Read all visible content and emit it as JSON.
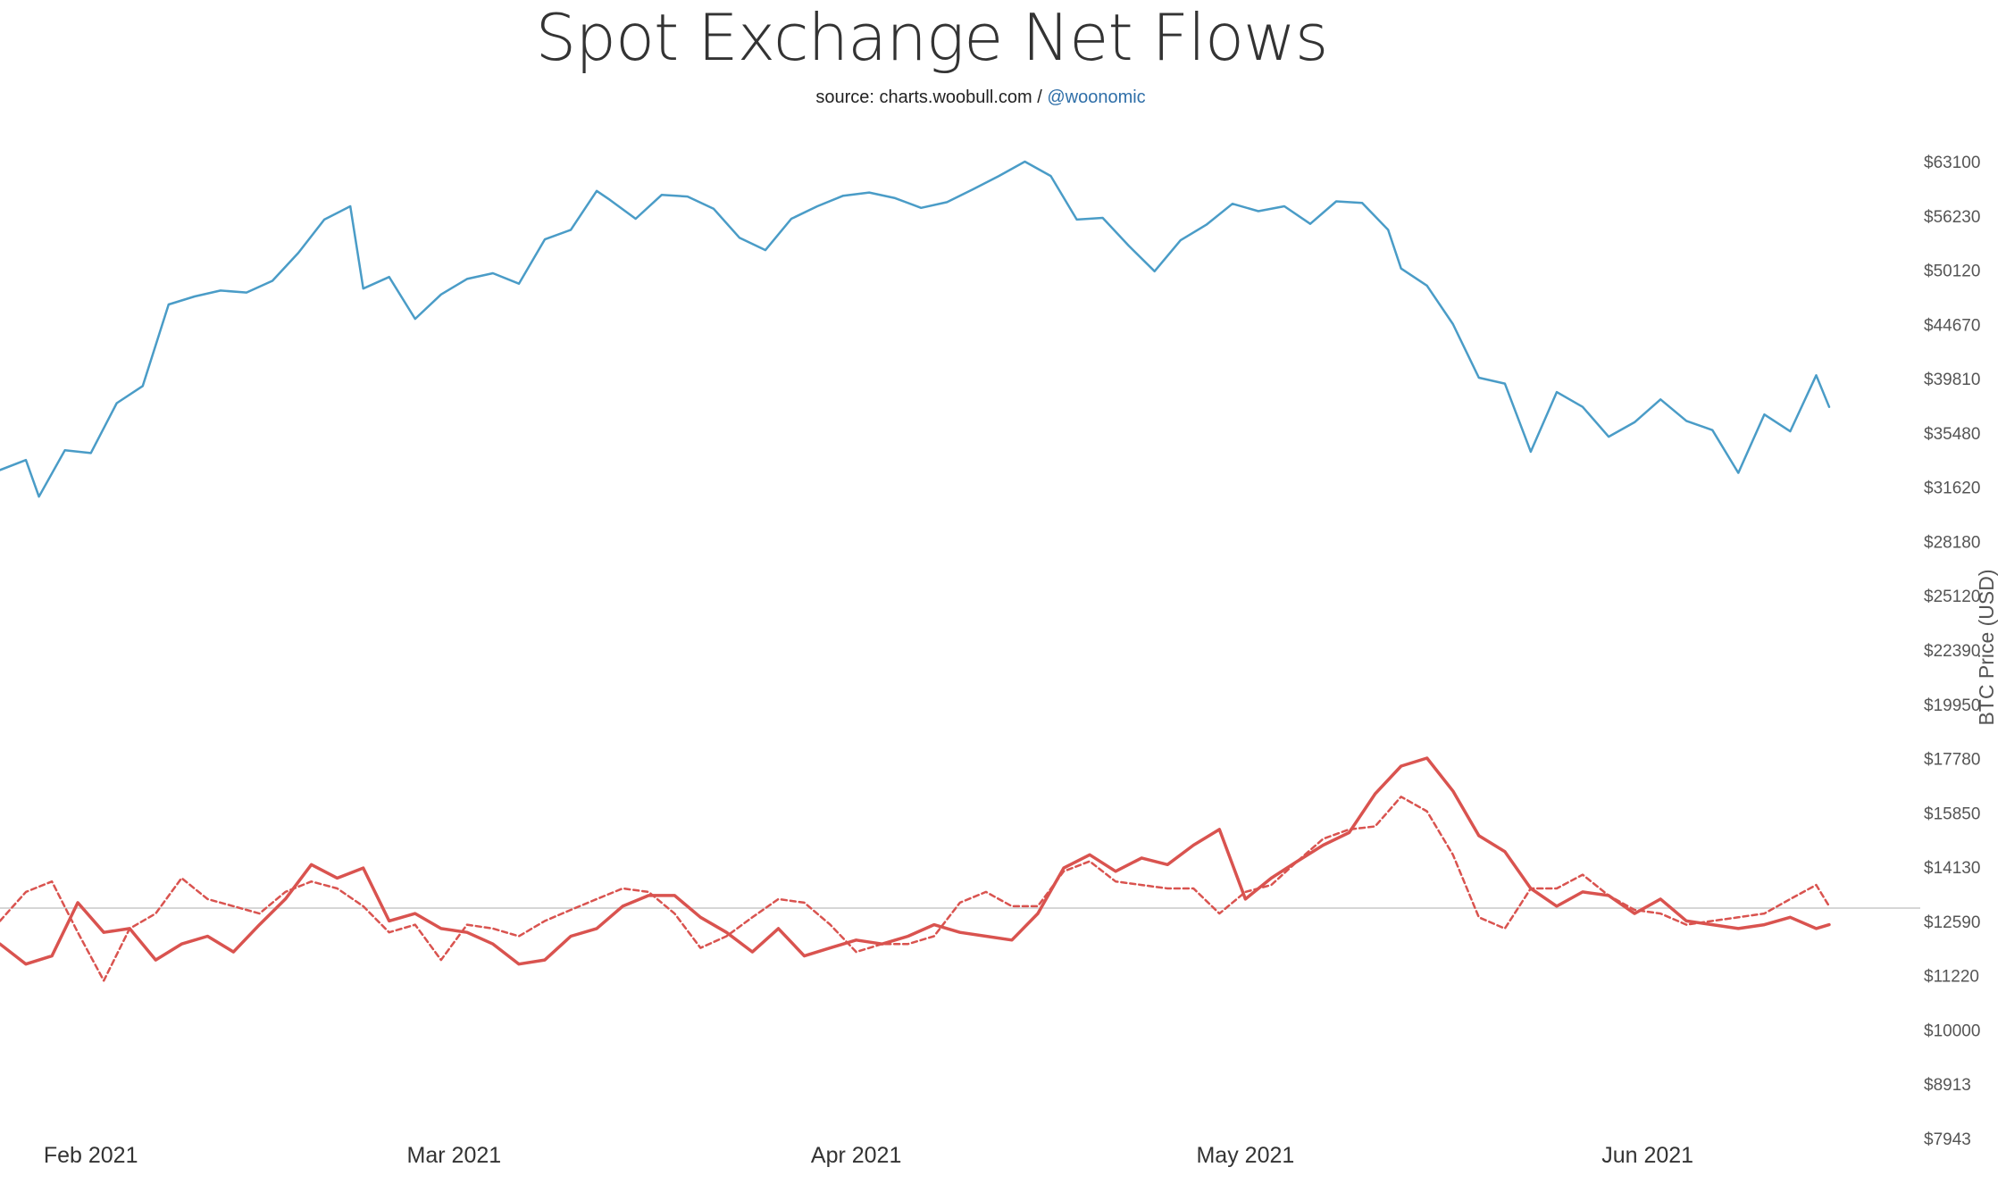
{
  "chart_data": {
    "type": "line",
    "title": "Spot Exchange Net Flows",
    "subtitle": {
      "source": "source: charts.woobull.com",
      "separator": " / ",
      "handle": "@woonomic"
    },
    "ylabel_right": "BTC Price (USD)",
    "y_scale": "log",
    "ylim": [
      7943,
      63100
    ],
    "y_ticks": [
      "$63100",
      "$56230",
      "$50120",
      "$44670",
      "$39810",
      "$35480",
      "$31620",
      "$28180",
      "$25120",
      "$22390",
      "$19950",
      "$17780",
      "$15850",
      "$14130",
      "$12590",
      "$11220",
      "$10000",
      "$8913",
      "$7943"
    ],
    "x_ticks": [
      {
        "label": "Feb 2021",
        "date": "2021-02-01"
      },
      {
        "label": "Mar 2021",
        "date": "2021-03-01"
      },
      {
        "label": "Apr 2021",
        "date": "2021-04-01"
      },
      {
        "label": "May 2021",
        "date": "2021-05-01"
      },
      {
        "label": "Jun 2021",
        "date": "2021-06-01"
      }
    ],
    "xlim": [
      "2021-01-25",
      "2021-06-15"
    ],
    "reference_line_value": 12950,
    "series": [
      {
        "name": "",
        "color": "#4a9cc7",
        "style": "solid",
        "x": [
          "2021-01-25",
          "2021-01-27",
          "2021-01-28",
          "2021-01-30",
          "2021-02-01",
          "2021-02-03",
          "2021-02-05",
          "2021-02-07",
          "2021-02-09",
          "2021-02-11",
          "2021-02-13",
          "2021-02-15",
          "2021-02-17",
          "2021-02-19",
          "2021-02-21",
          "2021-02-22",
          "2021-02-24",
          "2021-02-26",
          "2021-02-28",
          "2021-03-02",
          "2021-03-04",
          "2021-03-06",
          "2021-03-08",
          "2021-03-10",
          "2021-03-12",
          "2021-03-13",
          "2021-03-15",
          "2021-03-17",
          "2021-03-19",
          "2021-03-21",
          "2021-03-23",
          "2021-03-25",
          "2021-03-27",
          "2021-03-29",
          "2021-03-31",
          "2021-04-02",
          "2021-04-04",
          "2021-04-06",
          "2021-04-08",
          "2021-04-10",
          "2021-04-12",
          "2021-04-14",
          "2021-04-16",
          "2021-04-18",
          "2021-04-20",
          "2021-04-22",
          "2021-04-24",
          "2021-04-26",
          "2021-04-28",
          "2021-04-30",
          "2021-05-02",
          "2021-05-04",
          "2021-05-06",
          "2021-05-08",
          "2021-05-10",
          "2021-05-12",
          "2021-05-13",
          "2021-05-15",
          "2021-05-17",
          "2021-05-19",
          "2021-05-21",
          "2021-05-23",
          "2021-05-25",
          "2021-05-27",
          "2021-05-29",
          "2021-05-31",
          "2021-06-02",
          "2021-06-04",
          "2021-06-06",
          "2021-06-08",
          "2021-06-10",
          "2021-06-12",
          "2021-06-14",
          "2021-06-15"
        ],
        "y": [
          32800,
          33500,
          31000,
          34200,
          34000,
          37800,
          39200,
          46600,
          47400,
          48000,
          47800,
          49000,
          52000,
          55800,
          57400,
          48200,
          49400,
          45200,
          47600,
          49200,
          49800,
          48700,
          53500,
          54600,
          59300,
          58200,
          55900,
          58800,
          58600,
          57100,
          53700,
          52300,
          55900,
          57400,
          58700,
          59100,
          58400,
          57200,
          57900,
          59500,
          61200,
          63100,
          61200,
          55800,
          56000,
          52800,
          50000,
          53400,
          55200,
          57700,
          56800,
          57400,
          55300,
          58000,
          57800,
          54600,
          50300,
          48500,
          44700,
          39900,
          39400,
          34100,
          38700,
          37500,
          35200,
          36300,
          38100,
          36400,
          35700,
          32600,
          36900,
          35600,
          40100,
          37500
        ]
      },
      {
        "name": "",
        "color": "#d9534f",
        "style": "solid",
        "x": [
          "2021-01-25",
          "2021-01-27",
          "2021-01-29",
          "2021-01-31",
          "2021-02-02",
          "2021-02-04",
          "2021-02-06",
          "2021-02-08",
          "2021-02-10",
          "2021-02-12",
          "2021-02-14",
          "2021-02-16",
          "2021-02-18",
          "2021-02-20",
          "2021-02-22",
          "2021-02-24",
          "2021-02-26",
          "2021-02-28",
          "2021-03-02",
          "2021-03-04",
          "2021-03-06",
          "2021-03-08",
          "2021-03-10",
          "2021-03-12",
          "2021-03-14",
          "2021-03-16",
          "2021-03-18",
          "2021-03-20",
          "2021-03-22",
          "2021-03-24",
          "2021-03-26",
          "2021-03-28",
          "2021-03-30",
          "2021-04-01",
          "2021-04-03",
          "2021-04-05",
          "2021-04-07",
          "2021-04-09",
          "2021-04-11",
          "2021-04-13",
          "2021-04-15",
          "2021-04-17",
          "2021-04-19",
          "2021-04-21",
          "2021-04-23",
          "2021-04-25",
          "2021-04-27",
          "2021-04-29",
          "2021-05-01",
          "2021-05-03",
          "2021-05-05",
          "2021-05-07",
          "2021-05-09",
          "2021-05-11",
          "2021-05-13",
          "2021-05-15",
          "2021-05-17",
          "2021-05-19",
          "2021-05-21",
          "2021-05-23",
          "2021-05-25",
          "2021-05-27",
          "2021-05-29",
          "2021-05-31",
          "2021-06-02",
          "2021-06-04",
          "2021-06-06",
          "2021-06-08",
          "2021-06-10",
          "2021-06-12",
          "2021-06-14",
          "2021-06-15"
        ],
        "y": [
          12000,
          11500,
          11700,
          13100,
          12300,
          12400,
          11600,
          12000,
          12200,
          11800,
          12500,
          13200,
          14200,
          13800,
          14100,
          12600,
          12800,
          12400,
          12300,
          12000,
          11500,
          11600,
          12200,
          12400,
          13000,
          13300,
          13300,
          12700,
          12300,
          11800,
          12400,
          11700,
          11900,
          12100,
          12000,
          12200,
          12500,
          12300,
          12200,
          12100,
          12800,
          14100,
          14500,
          14000,
          14400,
          14200,
          14800,
          15300,
          13200,
          13800,
          14300,
          14800,
          15200,
          16500,
          17500,
          17800,
          16600,
          15100,
          14600,
          13500,
          13000,
          13400,
          13300,
          12800,
          13200,
          12600,
          12500,
          12400,
          12500,
          12700,
          12400,
          12500
        ]
      },
      {
        "name": "",
        "color": "#d9534f",
        "style": "dashed",
        "x": [
          "2021-01-25",
          "2021-01-27",
          "2021-01-29",
          "2021-01-31",
          "2021-02-02",
          "2021-02-04",
          "2021-02-06",
          "2021-02-08",
          "2021-02-10",
          "2021-02-12",
          "2021-02-14",
          "2021-02-16",
          "2021-02-18",
          "2021-02-20",
          "2021-02-22",
          "2021-02-24",
          "2021-02-26",
          "2021-02-28",
          "2021-03-02",
          "2021-03-04",
          "2021-03-06",
          "2021-03-08",
          "2021-03-10",
          "2021-03-12",
          "2021-03-14",
          "2021-03-16",
          "2021-03-18",
          "2021-03-20",
          "2021-03-22",
          "2021-03-24",
          "2021-03-26",
          "2021-03-28",
          "2021-03-30",
          "2021-04-01",
          "2021-04-03",
          "2021-04-05",
          "2021-04-07",
          "2021-04-09",
          "2021-04-11",
          "2021-04-13",
          "2021-04-15",
          "2021-04-17",
          "2021-04-19",
          "2021-04-21",
          "2021-04-23",
          "2021-04-25",
          "2021-04-27",
          "2021-04-29",
          "2021-05-01",
          "2021-05-03",
          "2021-05-05",
          "2021-05-07",
          "2021-05-09",
          "2021-05-11",
          "2021-05-13",
          "2021-05-15",
          "2021-05-17",
          "2021-05-19",
          "2021-05-21",
          "2021-05-23",
          "2021-05-25",
          "2021-05-27",
          "2021-05-29",
          "2021-05-31",
          "2021-06-02",
          "2021-06-04",
          "2021-06-06",
          "2021-06-08",
          "2021-06-10",
          "2021-06-12",
          "2021-06-14",
          "2021-06-15"
        ],
        "y": [
          12600,
          13400,
          13700,
          12300,
          11100,
          12400,
          12800,
          13800,
          13200,
          13000,
          12800,
          13400,
          13700,
          13500,
          13000,
          12300,
          12500,
          11600,
          12500,
          12400,
          12200,
          12600,
          12900,
          13200,
          13500,
          13400,
          12800,
          11900,
          12200,
          12700,
          13200,
          13100,
          12500,
          11800,
          12000,
          12000,
          12200,
          13100,
          13400,
          13000,
          13000,
          14000,
          14300,
          13700,
          13600,
          13500,
          13500,
          12800,
          13400,
          13600,
          14300,
          15000,
          15300,
          15400,
          16400,
          15900,
          14500,
          12700,
          12400,
          13500,
          13500,
          13900,
          13300,
          12900,
          12800,
          12500,
          12600,
          12700,
          12800,
          13200,
          13600,
          13000
        ]
      }
    ]
  }
}
